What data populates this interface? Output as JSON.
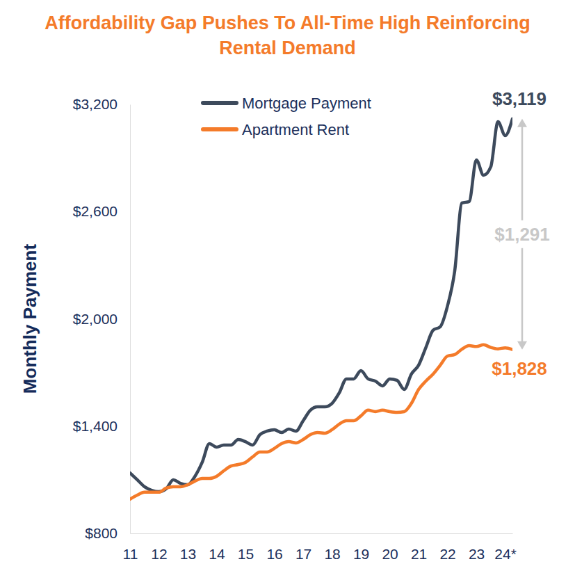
{
  "chart_data": {
    "type": "line",
    "title": "Affordability Gap Pushes To All-Time High Reinforcing Rental Demand",
    "y_label": "Monthly Payment",
    "x": [
      11,
      11.25,
      11.5,
      11.75,
      12,
      12.25,
      12.5,
      12.75,
      13,
      13.25,
      13.5,
      13.75,
      14,
      14.25,
      14.5,
      14.75,
      15,
      15.25,
      15.5,
      15.75,
      16,
      16.25,
      16.5,
      16.75,
      17,
      17.25,
      17.5,
      17.75,
      18,
      18.25,
      18.5,
      18.75,
      19,
      19.25,
      19.5,
      19.75,
      20,
      20.25,
      20.5,
      20.75,
      21,
      21.25,
      21.5,
      21.75,
      22,
      22.25,
      22.5,
      22.75,
      23,
      23.25,
      23.5,
      23.75,
      24,
      24.25
    ],
    "series": [
      {
        "name": "Mortgage Payment",
        "color": "#3d4a5c",
        "values": [
          1138,
          1100,
          1061,
          1041,
          1033,
          1049,
          1100,
          1080,
          1072,
          1119,
          1197,
          1302,
          1282,
          1294,
          1294,
          1325,
          1313,
          1294,
          1352,
          1372,
          1380,
          1364,
          1383,
          1372,
          1430,
          1489,
          1508,
          1508,
          1527,
          1586,
          1664,
          1664,
          1710,
          1664,
          1652,
          1625,
          1664,
          1656,
          1605,
          1691,
          1741,
          1839,
          1936,
          1956,
          2072,
          2267,
          2648,
          2656,
          2889,
          2803,
          2850,
          3103,
          3025,
          3119
        ]
      },
      {
        "name": "Apartment Rent",
        "color": "#f47b2a",
        "values": [
          991,
          1014,
          1030,
          1030,
          1030,
          1053,
          1061,
          1061,
          1072,
          1092,
          1107,
          1107,
          1119,
          1150,
          1177,
          1185,
          1197,
          1228,
          1255,
          1255,
          1275,
          1302,
          1313,
          1306,
          1325,
          1352,
          1364,
          1360,
          1380,
          1411,
          1430,
          1430,
          1457,
          1489,
          1481,
          1489,
          1481,
          1477,
          1481,
          1527,
          1605,
          1652,
          1691,
          1741,
          1792,
          1800,
          1830,
          1850,
          1845,
          1855,
          1840,
          1832,
          1838,
          1828
        ]
      }
    ],
    "xlim": [
      11,
      24.25
    ],
    "xticks": [
      11,
      12,
      13,
      14,
      15,
      16,
      17,
      18,
      19,
      20,
      21,
      22,
      23,
      {
        "value": 24,
        "label": "24*"
      }
    ],
    "ylim": [
      800,
      3200
    ],
    "yticks": [
      {
        "value": 800,
        "label": "$800"
      },
      {
        "value": 1400,
        "label": "$1,400"
      },
      {
        "value": 2000,
        "label": "$2,000"
      },
      {
        "value": 2600,
        "label": "$2,600"
      },
      {
        "value": 3200,
        "label": "$3,200"
      }
    ],
    "grid": false,
    "legend": "top-left",
    "annotations": [
      {
        "text": "$3,119",
        "x": 24.25,
        "y": 3119,
        "color": "#3d4a5c"
      },
      {
        "text": "$1,828",
        "x": 24.25,
        "y": 1828,
        "color": "#f47b2a"
      },
      {
        "text": "$1,291",
        "x": 24.25,
        "from": 1828,
        "value": 1291,
        "color": "#c8c8c8"
      }
    ]
  }
}
